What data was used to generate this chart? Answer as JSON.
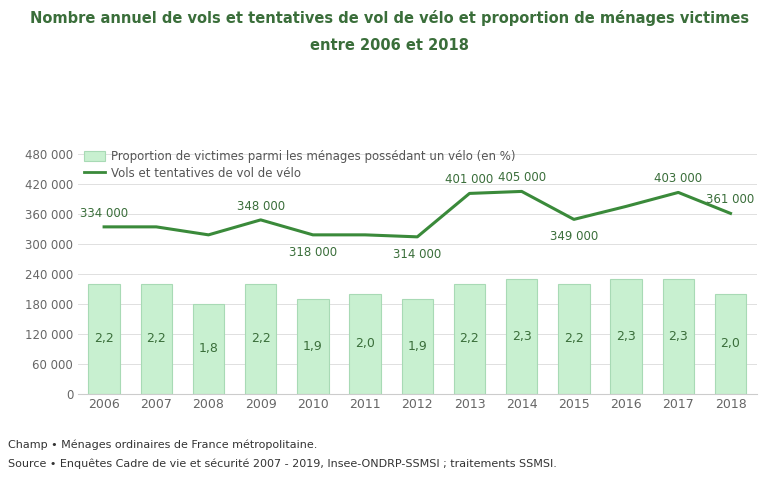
{
  "years": [
    2006,
    2007,
    2008,
    2009,
    2010,
    2011,
    2012,
    2013,
    2014,
    2015,
    2016,
    2017,
    2018
  ],
  "line_values": [
    334000,
    334000,
    318000,
    348000,
    318000,
    318000,
    314000,
    401000,
    405000,
    349000,
    375000,
    403000,
    361000
  ],
  "bar_proportions": [
    "2,2",
    "2,2",
    "1,8",
    "2,2",
    "1,9",
    "2,0",
    "1,9",
    "2,2",
    "2,3",
    "2,2",
    "2,3",
    "2,3",
    "2,0"
  ],
  "bar_heights_scaled": [
    220000,
    220000,
    180000,
    220000,
    190000,
    200000,
    190000,
    220000,
    230000,
    220000,
    230000,
    230000,
    200000
  ],
  "line_label_values": [
    334000,
    null,
    null,
    348000,
    318000,
    null,
    314000,
    401000,
    405000,
    349000,
    null,
    403000,
    361000
  ],
  "line_label_texts": [
    "334 000",
    null,
    null,
    "348 000",
    "318 000",
    null,
    "314 000",
    "401 000",
    "405 000",
    "349 000",
    null,
    "403 000",
    "361 000"
  ],
  "label_above": [
    true,
    false,
    false,
    true,
    false,
    false,
    false,
    true,
    true,
    false,
    false,
    true,
    true
  ],
  "bar_color": "#c8f0d0",
  "bar_edge_color": "#a8dab5",
  "line_color": "#3a8a3a",
  "title_line1": "Nombre annuel de vols et tentatives de vol de vélo et proportion de ménages victimes",
  "title_line2": "entre 2006 et 2018",
  "title_color": "#3a6e3a",
  "legend_bar_label": "Proportion de victimes parmi les ménages possédant un vélo (en %)",
  "legend_line_label": "Vols et tentatives de vol de vélo",
  "ylim": [
    0,
    500000
  ],
  "yticks": [
    0,
    60000,
    120000,
    180000,
    240000,
    300000,
    360000,
    420000,
    480000
  ],
  "ytick_labels": [
    "0",
    "60 000",
    "120 000",
    "180 000",
    "240 000",
    "300 000",
    "360 000",
    "420 000",
    "480 000"
  ],
  "footer_champ": "Champ • Ménages ordinaires de France métropolitaine.",
  "footer_source": "Source • Enquêtes Cadre de vie et sécurité 2007 - 2019, Insee-ONDRP-SSMSI ; traitements SSMSI.",
  "background_color": "#ffffff"
}
